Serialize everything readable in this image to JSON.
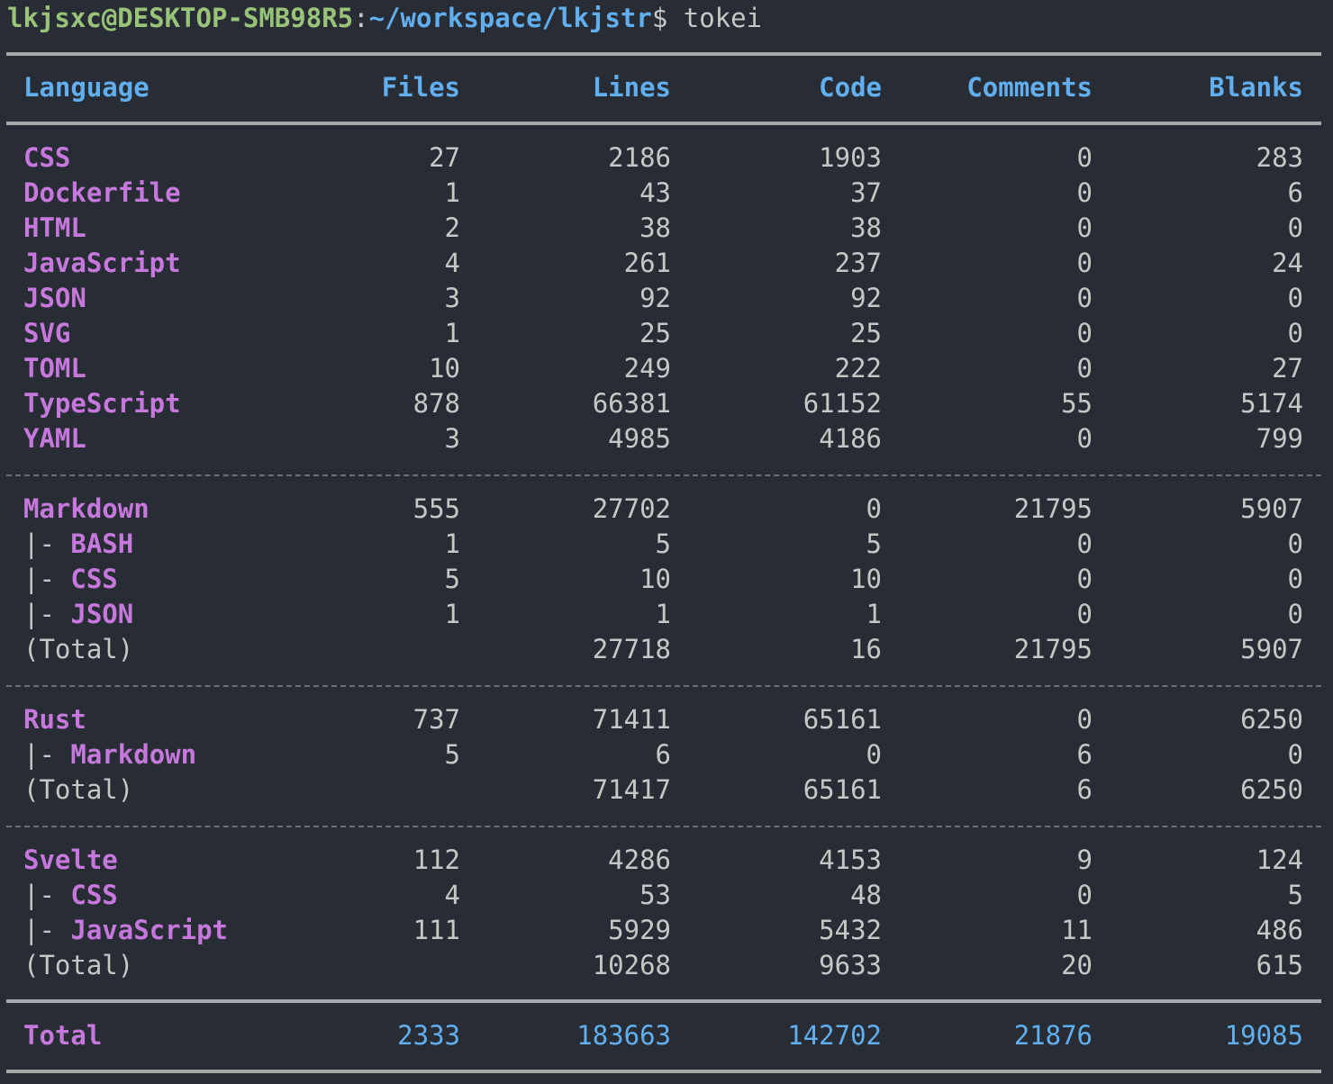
{
  "prompt": {
    "user_host": "lkjsxc@DESKTOP-SMB98R5",
    "colon": ":",
    "path": "~/workspace/lkjstr",
    "dollar": "$",
    "command": " tokei"
  },
  "table": {
    "headers": [
      "Language",
      "Files",
      "Lines",
      "Code",
      "Comments",
      "Blanks"
    ],
    "group1": [
      {
        "lang": "CSS",
        "files": "27",
        "lines": "2186",
        "code": "1903",
        "comments": "0",
        "blanks": "283"
      },
      {
        "lang": "Dockerfile",
        "files": "1",
        "lines": "43",
        "code": "37",
        "comments": "0",
        "blanks": "6"
      },
      {
        "lang": "HTML",
        "files": "2",
        "lines": "38",
        "code": "38",
        "comments": "0",
        "blanks": "0"
      },
      {
        "lang": "JavaScript",
        "files": "4",
        "lines": "261",
        "code": "237",
        "comments": "0",
        "blanks": "24"
      },
      {
        "lang": "JSON",
        "files": "3",
        "lines": "92",
        "code": "92",
        "comments": "0",
        "blanks": "0"
      },
      {
        "lang": "SVG",
        "files": "1",
        "lines": "25",
        "code": "25",
        "comments": "0",
        "blanks": "0"
      },
      {
        "lang": "TOML",
        "files": "10",
        "lines": "249",
        "code": "222",
        "comments": "0",
        "blanks": "27"
      },
      {
        "lang": "TypeScript",
        "files": "878",
        "lines": "66381",
        "code": "61152",
        "comments": "55",
        "blanks": "5174"
      },
      {
        "lang": "YAML",
        "files": "3",
        "lines": "4985",
        "code": "4186",
        "comments": "0",
        "blanks": "799"
      }
    ],
    "markdown": {
      "main": {
        "lang": "Markdown",
        "files": "555",
        "lines": "27702",
        "code": "0",
        "comments": "21795",
        "blanks": "5907"
      },
      "subs": [
        {
          "prefix": "|- ",
          "lang": "BASH",
          "files": "1",
          "lines": "5",
          "code": "5",
          "comments": "0",
          "blanks": "0"
        },
        {
          "prefix": "|- ",
          "lang": "CSS",
          "files": "5",
          "lines": "10",
          "code": "10",
          "comments": "0",
          "blanks": "0"
        },
        {
          "prefix": "|- ",
          "lang": "JSON",
          "files": "1",
          "lines": "1",
          "code": "1",
          "comments": "0",
          "blanks": "0"
        }
      ],
      "total": {
        "label": "(Total)",
        "files": "",
        "lines": "27718",
        "code": "16",
        "comments": "21795",
        "blanks": "5907"
      }
    },
    "rust": {
      "main": {
        "lang": "Rust",
        "files": "737",
        "lines": "71411",
        "code": "65161",
        "comments": "0",
        "blanks": "6250"
      },
      "subs": [
        {
          "prefix": "|- ",
          "lang": "Markdown",
          "files": "5",
          "lines": "6",
          "code": "0",
          "comments": "6",
          "blanks": "0"
        }
      ],
      "total": {
        "label": "(Total)",
        "files": "",
        "lines": "71417",
        "code": "65161",
        "comments": "6",
        "blanks": "6250"
      }
    },
    "svelte": {
      "main": {
        "lang": "Svelte",
        "files": "112",
        "lines": "4286",
        "code": "4153",
        "comments": "9",
        "blanks": "124"
      },
      "subs": [
        {
          "prefix": "|- ",
          "lang": "CSS",
          "files": "4",
          "lines": "53",
          "code": "48",
          "comments": "0",
          "blanks": "5"
        },
        {
          "prefix": "|- ",
          "lang": "JavaScript",
          "files": "111",
          "lines": "5929",
          "code": "5432",
          "comments": "11",
          "blanks": "486"
        }
      ],
      "total": {
        "label": "(Total)",
        "files": "",
        "lines": "10268",
        "code": "9633",
        "comments": "20",
        "blanks": "615"
      }
    },
    "grand_total": {
      "label": "Total",
      "files": "2333",
      "lines": "183663",
      "code": "142702",
      "comments": "21876",
      "blanks": "19085"
    }
  },
  "colors": {
    "background": "#282c34",
    "prompt_user": "#98c379",
    "prompt_path": "#61afef",
    "header": "#61afef",
    "language": "#c678dd",
    "numbers": "#c5c8c6",
    "grand_total_numbers": "#61afef"
  }
}
